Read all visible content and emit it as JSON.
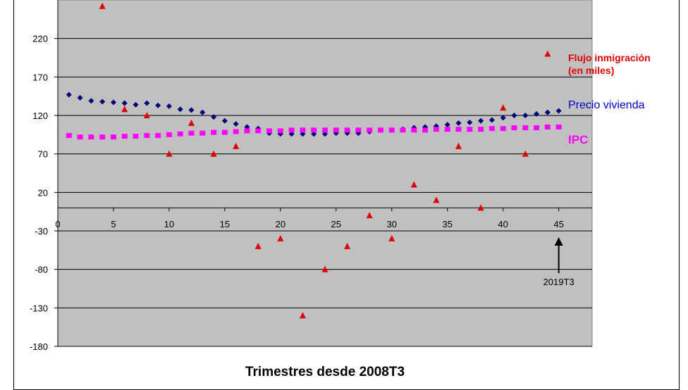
{
  "chart_data": {
    "type": "scatter",
    "title": "",
    "xlabel": "Trimestres desde 2008T3",
    "ylabel": "",
    "xlim": [
      0,
      48
    ],
    "ylim": [
      -180,
      270
    ],
    "x_ticks": [
      0,
      5,
      10,
      15,
      20,
      25,
      30,
      35,
      40,
      45
    ],
    "y_ticks": [
      220,
      170,
      120,
      70,
      20,
      -30,
      -80,
      -130,
      -180
    ],
    "grid": true,
    "legend_placement": "right",
    "series": [
      {
        "name": "Flujo inmigración (en miles)",
        "name_lines": [
          "Flujo inmigración",
          "(en miles)"
        ],
        "marker": "triangle",
        "color": "#e00000",
        "points": [
          [
            4,
            262
          ],
          [
            6,
            128
          ],
          [
            8,
            120
          ],
          [
            10,
            70
          ],
          [
            12,
            110
          ],
          [
            14,
            70
          ],
          [
            16,
            80
          ],
          [
            18,
            -50
          ],
          [
            20,
            -40
          ],
          [
            22,
            -140
          ],
          [
            24,
            -80
          ],
          [
            26,
            -50
          ],
          [
            28,
            -10
          ],
          [
            30,
            -40
          ],
          [
            32,
            30
          ],
          [
            34,
            10
          ],
          [
            36,
            80
          ],
          [
            38,
            0
          ],
          [
            40,
            130
          ],
          [
            42,
            70
          ],
          [
            44,
            200
          ]
        ]
      },
      {
        "name": "Precio vivienda",
        "marker": "diamond",
        "color": "#00007a",
        "points": [
          [
            1,
            147
          ],
          [
            2,
            143
          ],
          [
            3,
            139
          ],
          [
            4,
            138
          ],
          [
            5,
            137
          ],
          [
            6,
            136
          ],
          [
            7,
            134
          ],
          [
            8,
            136
          ],
          [
            9,
            133
          ],
          [
            10,
            132
          ],
          [
            11,
            128
          ],
          [
            12,
            127
          ],
          [
            13,
            124
          ],
          [
            14,
            118
          ],
          [
            15,
            113
          ],
          [
            16,
            109
          ],
          [
            17,
            105
          ],
          [
            18,
            103
          ],
          [
            19,
            97
          ],
          [
            20,
            96
          ],
          [
            21,
            96
          ],
          [
            22,
            96
          ],
          [
            23,
            96
          ],
          [
            24,
            96
          ],
          [
            25,
            97
          ],
          [
            26,
            97
          ],
          [
            27,
            97
          ],
          [
            28,
            99
          ],
          [
            29,
            101
          ],
          [
            30,
            101
          ],
          [
            31,
            102
          ],
          [
            32,
            104
          ],
          [
            33,
            105
          ],
          [
            34,
            106
          ],
          [
            35,
            108
          ],
          [
            36,
            110
          ],
          [
            37,
            111
          ],
          [
            38,
            113
          ],
          [
            39,
            114
          ],
          [
            40,
            117
          ],
          [
            41,
            120
          ],
          [
            42,
            120
          ],
          [
            43,
            122
          ],
          [
            44,
            124
          ],
          [
            45,
            126
          ]
        ]
      },
      {
        "name": "IPC",
        "marker": "square",
        "color": "#ff00ff",
        "points": [
          [
            1,
            94
          ],
          [
            2,
            92
          ],
          [
            3,
            92
          ],
          [
            4,
            92
          ],
          [
            5,
            92
          ],
          [
            6,
            93
          ],
          [
            7,
            93
          ],
          [
            8,
            94
          ],
          [
            9,
            94
          ],
          [
            10,
            95
          ],
          [
            11,
            96
          ],
          [
            12,
            97
          ],
          [
            13,
            97
          ],
          [
            14,
            98
          ],
          [
            15,
            98
          ],
          [
            16,
            99
          ],
          [
            17,
            100
          ],
          [
            18,
            100
          ],
          [
            19,
            100
          ],
          [
            20,
            100
          ],
          [
            21,
            101
          ],
          [
            22,
            101
          ],
          [
            23,
            101
          ],
          [
            24,
            101
          ],
          [
            25,
            101
          ],
          [
            26,
            101
          ],
          [
            27,
            101
          ],
          [
            28,
            101
          ],
          [
            29,
            101
          ],
          [
            30,
            101
          ],
          [
            31,
            101
          ],
          [
            32,
            101
          ],
          [
            33,
            101
          ],
          [
            34,
            102
          ],
          [
            35,
            102
          ],
          [
            36,
            102
          ],
          [
            37,
            102
          ],
          [
            38,
            102
          ],
          [
            39,
            103
          ],
          [
            40,
            103
          ],
          [
            41,
            104
          ],
          [
            42,
            104
          ],
          [
            43,
            104
          ],
          [
            44,
            105
          ],
          [
            45,
            105
          ]
        ]
      }
    ],
    "annotation": {
      "text": "2019T3",
      "x": 45
    }
  }
}
